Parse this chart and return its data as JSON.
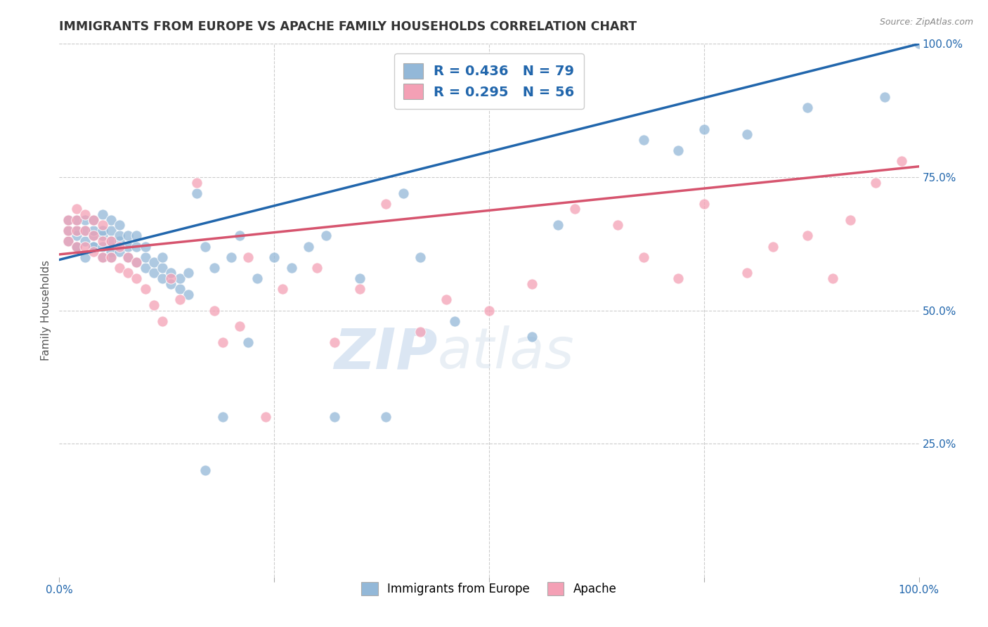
{
  "title": "IMMIGRANTS FROM EUROPE VS APACHE FAMILY HOUSEHOLDS CORRELATION CHART",
  "source": "Source: ZipAtlas.com",
  "ylabel": "Family Households",
  "xlim": [
    0,
    1
  ],
  "ylim": [
    0,
    1
  ],
  "x_ticks": [
    0.0,
    0.25,
    0.5,
    0.75,
    1.0
  ],
  "x_tick_labels": [
    "0.0%",
    "",
    "",
    "",
    "100.0%"
  ],
  "y_tick_labels_right": [
    "25.0%",
    "50.0%",
    "75.0%",
    "100.0%"
  ],
  "y_tick_positions_right": [
    0.25,
    0.5,
    0.75,
    1.0
  ],
  "legend_labels": [
    "Immigrants from Europe",
    "Apache"
  ],
  "blue_color": "#93b8d8",
  "pink_color": "#f4a0b5",
  "blue_line_color": "#2166ac",
  "pink_line_color": "#d6546e",
  "blue_R": 0.436,
  "blue_N": 79,
  "pink_R": 0.295,
  "pink_N": 56,
  "watermark_zip": "ZIP",
  "watermark_atlas": "atlas",
  "background_color": "#ffffff",
  "grid_color": "#cccccc",
  "title_color": "#333333",
  "title_fontsize": 12.5,
  "blue_line_x0": 0.0,
  "blue_line_y0": 0.595,
  "blue_line_x1": 1.0,
  "blue_line_y1": 1.0,
  "pink_line_x0": 0.0,
  "pink_line_y0": 0.605,
  "pink_line_x1": 1.0,
  "pink_line_y1": 0.77,
  "blue_points_x": [
    0.01,
    0.01,
    0.01,
    0.02,
    0.02,
    0.02,
    0.02,
    0.02,
    0.03,
    0.03,
    0.03,
    0.03,
    0.04,
    0.04,
    0.04,
    0.04,
    0.04,
    0.05,
    0.05,
    0.05,
    0.05,
    0.05,
    0.06,
    0.06,
    0.06,
    0.06,
    0.06,
    0.07,
    0.07,
    0.07,
    0.07,
    0.08,
    0.08,
    0.08,
    0.09,
    0.09,
    0.09,
    0.1,
    0.1,
    0.1,
    0.11,
    0.11,
    0.12,
    0.12,
    0.12,
    0.13,
    0.13,
    0.14,
    0.14,
    0.15,
    0.15,
    0.16,
    0.17,
    0.17,
    0.18,
    0.19,
    0.2,
    0.21,
    0.22,
    0.23,
    0.25,
    0.27,
    0.29,
    0.31,
    0.32,
    0.35,
    0.38,
    0.4,
    0.42,
    0.46,
    0.55,
    0.58,
    0.68,
    0.72,
    0.75,
    0.8,
    0.87,
    0.96,
    1.0
  ],
  "blue_points_y": [
    0.63,
    0.65,
    0.67,
    0.62,
    0.64,
    0.65,
    0.67,
    0.62,
    0.63,
    0.65,
    0.67,
    0.6,
    0.62,
    0.64,
    0.65,
    0.67,
    0.62,
    0.6,
    0.62,
    0.64,
    0.65,
    0.68,
    0.61,
    0.63,
    0.65,
    0.67,
    0.6,
    0.61,
    0.63,
    0.64,
    0.66,
    0.6,
    0.62,
    0.64,
    0.59,
    0.62,
    0.64,
    0.58,
    0.6,
    0.62,
    0.57,
    0.59,
    0.56,
    0.58,
    0.6,
    0.55,
    0.57,
    0.54,
    0.56,
    0.53,
    0.57,
    0.72,
    0.2,
    0.62,
    0.58,
    0.3,
    0.6,
    0.64,
    0.44,
    0.56,
    0.6,
    0.58,
    0.62,
    0.64,
    0.3,
    0.56,
    0.3,
    0.72,
    0.6,
    0.48,
    0.45,
    0.66,
    0.82,
    0.8,
    0.84,
    0.83,
    0.88,
    0.9,
    1.0
  ],
  "pink_points_x": [
    0.01,
    0.01,
    0.01,
    0.02,
    0.02,
    0.02,
    0.02,
    0.03,
    0.03,
    0.03,
    0.04,
    0.04,
    0.04,
    0.05,
    0.05,
    0.05,
    0.06,
    0.06,
    0.07,
    0.07,
    0.08,
    0.08,
    0.09,
    0.09,
    0.1,
    0.11,
    0.12,
    0.13,
    0.14,
    0.16,
    0.18,
    0.19,
    0.21,
    0.22,
    0.24,
    0.26,
    0.3,
    0.32,
    0.35,
    0.38,
    0.42,
    0.45,
    0.5,
    0.55,
    0.6,
    0.65,
    0.68,
    0.72,
    0.75,
    0.8,
    0.83,
    0.87,
    0.9,
    0.92,
    0.95,
    0.98
  ],
  "pink_points_y": [
    0.63,
    0.65,
    0.67,
    0.62,
    0.65,
    0.67,
    0.69,
    0.62,
    0.65,
    0.68,
    0.61,
    0.64,
    0.67,
    0.6,
    0.63,
    0.66,
    0.6,
    0.63,
    0.58,
    0.62,
    0.57,
    0.6,
    0.56,
    0.59,
    0.54,
    0.51,
    0.48,
    0.56,
    0.52,
    0.74,
    0.5,
    0.44,
    0.47,
    0.6,
    0.3,
    0.54,
    0.58,
    0.44,
    0.54,
    0.7,
    0.46,
    0.52,
    0.5,
    0.55,
    0.69,
    0.66,
    0.6,
    0.56,
    0.7,
    0.57,
    0.62,
    0.64,
    0.56,
    0.67,
    0.74,
    0.78
  ]
}
